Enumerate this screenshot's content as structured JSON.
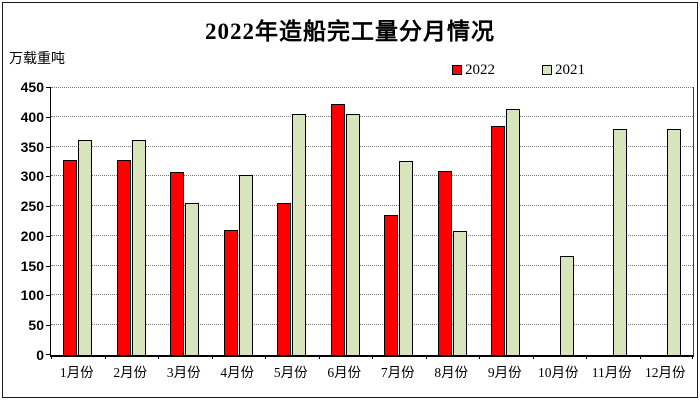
{
  "chart_data": {
    "type": "bar",
    "title": "2022年造船完工量分月情况",
    "unit_label": "万载重吨",
    "xlabel": "",
    "ylabel": "万载重吨",
    "ylim": [
      0,
      450
    ],
    "ytick_step": 50,
    "grid": "horizontal-dotted",
    "legend_position": "top-right",
    "categories": [
      "1月份",
      "2月份",
      "3月份",
      "4月份",
      "5月份",
      "6月份",
      "7月份",
      "8月份",
      "9月份",
      "10月份",
      "11月份",
      "12月份"
    ],
    "series": [
      {
        "name": "2022",
        "color": "#ff0000",
        "values": [
          327,
          327,
          308,
          210,
          256,
          422,
          235,
          309,
          385,
          null,
          null,
          null
        ]
      },
      {
        "name": "2021",
        "color": "#d8e4bc",
        "values": [
          361,
          361,
          255,
          302,
          405,
          405,
          326,
          208,
          413,
          166,
          380,
          380
        ]
      }
    ]
  },
  "colors": {
    "axis": "#000000",
    "gridline": "#7a7a7a",
    "bar_border": "#000000",
    "frame_border": "#1a1a1a"
  }
}
